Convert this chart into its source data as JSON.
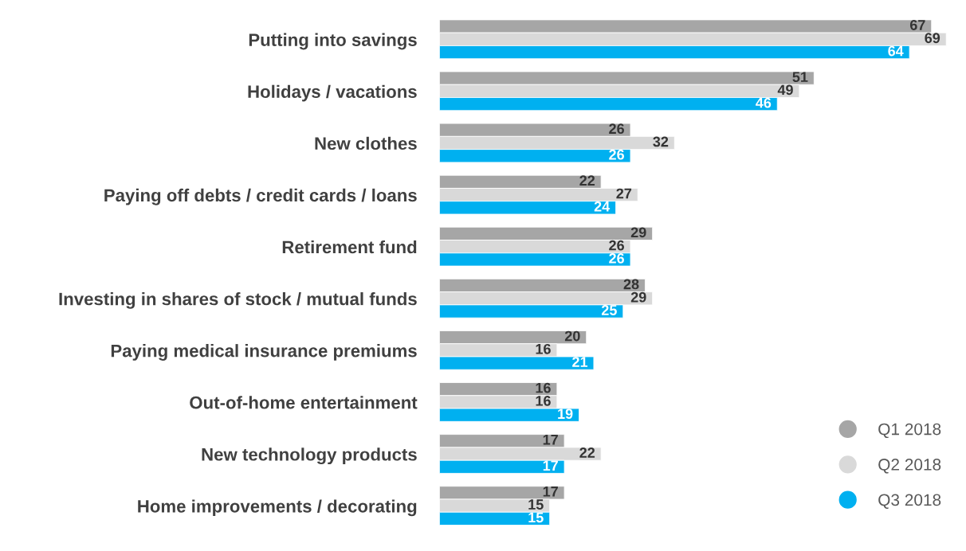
{
  "chart_data": {
    "type": "bar",
    "orientation": "horizontal",
    "data_labels": true,
    "legend": "bottom right",
    "grid": false,
    "categories": [
      "Putting into savings",
      "Holidays / vacations",
      "New clothes",
      "Paying off debts / credit cards / loans",
      "Retirement fund",
      "Investing in shares of stock / mutual funds",
      "Paying medical insurance premiums",
      "Out-of-home entertainment",
      "New technology products",
      "Home improvements / decorating"
    ],
    "series": [
      {
        "name": "Q1 2018",
        "color": "#a6a6a6",
        "values": [
          67,
          51,
          26,
          22,
          29,
          28,
          20,
          16,
          17,
          17
        ]
      },
      {
        "name": "Q2 2018",
        "color": "#d9d9d9",
        "values": [
          69,
          49,
          32,
          27,
          26,
          29,
          16,
          16,
          22,
          15
        ]
      },
      {
        "name": "Q3 2018",
        "color": "#00b0f0",
        "values": [
          64,
          46,
          26,
          24,
          26,
          25,
          21,
          19,
          17,
          15
        ]
      }
    ]
  }
}
